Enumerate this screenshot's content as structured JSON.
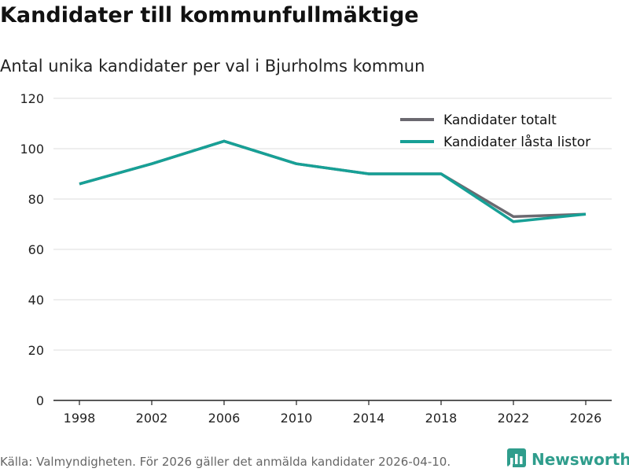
{
  "title": "Kandidater till kommunfullmäktige",
  "subtitle": "Antal unika kandidater per val i Bjurholms kommun",
  "footer": "Källa: Valmyndigheten. För 2026 gäller det anmälda kandidater 2026-04-10.",
  "brand": {
    "name": "Newsworthy",
    "icon": "newsworthy-logo-icon"
  },
  "colors": {
    "totalt": "#6b6970",
    "lasta": "#17a096",
    "brand": "#2f9d8c",
    "grid": "#dddddd",
    "axis": "#222222"
  },
  "chart_data": {
    "type": "line",
    "title": "Kandidater till kommunfullmäktige",
    "subtitle": "Antal unika kandidater per val i Bjurholms kommun",
    "xlabel": "",
    "ylabel": "",
    "categories": [
      "1998",
      "2002",
      "2006",
      "2010",
      "2014",
      "2018",
      "2022",
      "2026"
    ],
    "ylim": [
      0,
      120
    ],
    "yticks": [
      "0",
      "20",
      "40",
      "60",
      "80",
      "100",
      "120"
    ],
    "grid": true,
    "legend": "top-right",
    "series": [
      {
        "name": "Kandidater totalt",
        "values": [
          86,
          94,
          103,
          94,
          90,
          90,
          73,
          74
        ]
      },
      {
        "name": "Kandidater låsta listor",
        "values": [
          86,
          94,
          103,
          94,
          90,
          90,
          71,
          74
        ]
      }
    ]
  }
}
